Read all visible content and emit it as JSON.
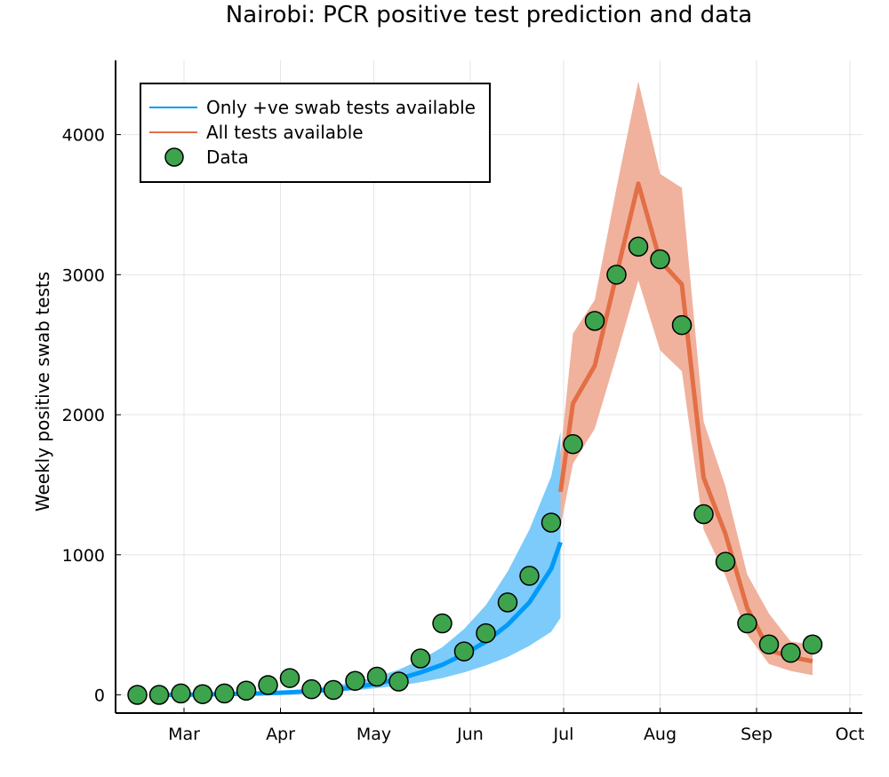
{
  "chart_data": {
    "type": "line",
    "title": "Nairobi: PCR positive test prediction and data",
    "xlabel": "",
    "ylabel": "Weekly positive swab tests",
    "x_ticks": [
      {
        "label": "Mar",
        "day": 29
      },
      {
        "label": "Apr",
        "day": 60
      },
      {
        "label": "May",
        "day": 90
      },
      {
        "label": "Jun",
        "day": 121
      },
      {
        "label": "Jul",
        "day": 151
      },
      {
        "label": "Aug",
        "day": 182
      },
      {
        "label": "Sep",
        "day": 213
      },
      {
        "label": "Oct",
        "day": 243
      }
    ],
    "y_ticks": [
      0,
      1000,
      2000,
      3000,
      4000
    ],
    "xlim": [
      7,
      247
    ],
    "ylim": [
      -130,
      4530
    ],
    "grid": true,
    "legend_position": "top-left",
    "colors": {
      "only_positive": "#009af9",
      "only_positive_band": "#7ccbfa",
      "all_tests": "#e26f46",
      "all_tests_band": "#f0b29d",
      "data": "#3da44d"
    },
    "series": [
      {
        "name": "Only +ve swab tests available",
        "day": [
          21,
          28,
          35,
          42,
          49,
          56,
          63,
          70,
          77,
          84,
          91,
          98,
          105,
          112,
          119,
          126,
          133,
          140,
          147,
          150
        ],
        "mean": [
          0,
          0,
          3,
          5,
          8,
          12,
          18,
          26,
          38,
          55,
          80,
          115,
          160,
          215,
          290,
          380,
          500,
          660,
          900,
          1090
        ],
        "lower": [
          0,
          0,
          1,
          2,
          4,
          6,
          10,
          15,
          22,
          32,
          48,
          65,
          90,
          120,
          160,
          210,
          270,
          350,
          450,
          550
        ],
        "upper": [
          0,
          1,
          5,
          9,
          14,
          22,
          32,
          46,
          65,
          92,
          130,
          180,
          250,
          340,
          470,
          640,
          880,
          1180,
          1560,
          1880
        ]
      },
      {
        "name": "All tests available",
        "day": [
          150,
          154,
          161,
          168,
          175,
          182,
          189,
          196,
          203,
          210,
          217,
          224,
          231
        ],
        "mean": [
          1450,
          2080,
          2350,
          3000,
          3650,
          3100,
          2930,
          1550,
          1150,
          620,
          320,
          270,
          240
        ],
        "lower": [
          1200,
          1650,
          1900,
          2420,
          2960,
          2460,
          2310,
          1180,
          850,
          430,
          220,
          170,
          140
        ],
        "upper": [
          1720,
          2580,
          2820,
          3620,
          4380,
          3720,
          3620,
          1950,
          1490,
          860,
          580,
          380,
          360
        ]
      }
    ],
    "data_points": {
      "name": "Data",
      "day": [
        14,
        21,
        28,
        35,
        42,
        49,
        56,
        63,
        70,
        77,
        84,
        91,
        98,
        105,
        112,
        119,
        126,
        133,
        140,
        147,
        154,
        161,
        168,
        175,
        182,
        189,
        196,
        203,
        210,
        217,
        224,
        231
      ],
      "value": [
        0,
        0,
        10,
        5,
        10,
        30,
        70,
        120,
        40,
        35,
        100,
        130,
        95,
        260,
        510,
        310,
        440,
        660,
        850,
        1230,
        1790,
        2670,
        3000,
        3200,
        3110,
        2640,
        1290,
        950,
        510,
        360,
        300,
        360
      ]
    }
  }
}
